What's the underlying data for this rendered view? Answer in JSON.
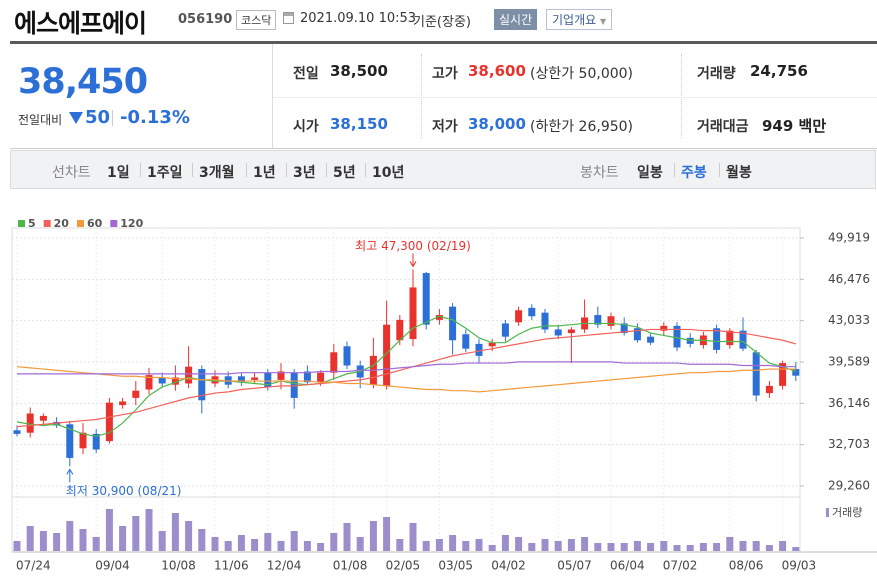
{
  "header": {
    "title": "에스에프에이",
    "code": "056190",
    "market": "코스닥",
    "datetime": "2021.09.10 10:53",
    "basis": "기준(장중)",
    "realtime": "실시간",
    "company": "기업개요"
  },
  "quote": {
    "price": "38,450",
    "change_label": "전일대비",
    "change": "50",
    "change_rate": "-0.13%",
    "items": [
      {
        "label": "전일",
        "value": "38,500"
      },
      {
        "label": "고가",
        "value": "38,600",
        "note": "(상한가 50,000)"
      },
      {
        "label": "거래량",
        "value": "24,756"
      },
      {
        "label": "시가",
        "value": "38,150"
      },
      {
        "label": "저가",
        "value": "38,000",
        "note": "(하한가 26,950)"
      },
      {
        "label": "거래대금",
        "value": "949 백만"
      }
    ]
  },
  "tabs": {
    "line_label": "선차트",
    "line": [
      "1일",
      "1주일",
      "3개월",
      "1년",
      "3년",
      "5년",
      "10년"
    ],
    "candle_label": "봉차트",
    "candle": [
      "일봉",
      "주봉",
      "월봉"
    ],
    "active": "주봉"
  },
  "chart_data": {
    "type": "candlestick",
    "categories": [
      "07/24",
      null,
      null,
      null,
      null,
      null,
      "09/04",
      null,
      null,
      null,
      null,
      "10/08",
      null,
      null,
      null,
      "11/06",
      null,
      null,
      null,
      "12/04",
      null,
      null,
      null,
      null,
      "01/08",
      null,
      null,
      null,
      "02/05",
      null,
      null,
      null,
      "03/05",
      null,
      null,
      null,
      "04/02",
      null,
      null,
      null,
      null,
      "05/07",
      null,
      null,
      null,
      "06/04",
      null,
      null,
      null,
      "07/02",
      null,
      null,
      null,
      null,
      "08/06",
      null,
      null,
      null,
      "09/03",
      null
    ],
    "open": [
      33900,
      33700,
      34700,
      34600,
      34400,
      32400,
      33600,
      33000,
      36000,
      36600,
      37300,
      38300,
      37700,
      37800,
      39000,
      37800,
      38400,
      38400,
      38100,
      38700,
      38100,
      38700,
      38800,
      37900,
      38700,
      40900,
      39300,
      37700,
      37600,
      41400,
      41500,
      47000,
      43100,
      44200,
      41900,
      41100,
      40900,
      42800,
      42900,
      44100,
      43700,
      42300,
      42000,
      42300,
      43500,
      42600,
      42800,
      42400,
      41700,
      42200,
      42600,
      41600,
      41000,
      42400,
      41000,
      42200,
      40400,
      37000,
      37600,
      39000
    ],
    "high": [
      34300,
      35800,
      35300,
      35000,
      34700,
      34500,
      34000,
      36600,
      36600,
      38000,
      39100,
      38700,
      39300,
      40900,
      39300,
      38900,
      38800,
      38700,
      38700,
      39000,
      39500,
      39000,
      39300,
      38900,
      41100,
      41300,
      39700,
      41600,
      44700,
      43500,
      47300,
      47100,
      44000,
      44500,
      42300,
      41500,
      41500,
      43100,
      44200,
      44400,
      44000,
      42700,
      42500,
      44800,
      44200,
      43700,
      43300,
      42800,
      42000,
      42900,
      42900,
      42000,
      42100,
      42700,
      42400,
      43300,
      40600,
      38000,
      39700,
      39600
    ],
    "low": [
      33400,
      33300,
      34400,
      34100,
      30900,
      31900,
      32000,
      32800,
      35700,
      36000,
      36900,
      37500,
      37200,
      37400,
      35300,
      37500,
      37400,
      37600,
      37800,
      37200,
      37300,
      35700,
      37700,
      37600,
      38100,
      39000,
      37400,
      37400,
      37300,
      41000,
      40900,
      42300,
      42700,
      40200,
      40400,
      39500,
      40500,
      41300,
      42600,
      43100,
      42000,
      41500,
      39500,
      42000,
      42400,
      42300,
      41800,
      41200,
      41000,
      41800,
      40500,
      40800,
      40700,
      40300,
      40700,
      40500,
      36300,
      36600,
      37300,
      38000
    ],
    "close": [
      33600,
      35300,
      35100,
      34300,
      31600,
      33700,
      32300,
      36200,
      36300,
      37200,
      38500,
      37800,
      38300,
      39200,
      36400,
      38400,
      37700,
      37900,
      38300,
      37500,
      38800,
      36600,
      37900,
      38700,
      40400,
      39300,
      38300,
      40100,
      42700,
      43100,
      45800,
      42700,
      43500,
      41400,
      40700,
      40100,
      41200,
      41700,
      43900,
      43400,
      42300,
      41800,
      42300,
      43300,
      42700,
      43400,
      42000,
      41400,
      41200,
      42600,
      40800,
      41100,
      41800,
      40600,
      42200,
      40700,
      36800,
      37600,
      39500,
      38450
    ],
    "up_color": "#e8322d",
    "down_color": "#2c6fd6",
    "series": [
      {
        "name": "5",
        "color": "#4db849",
        "values": [
          34600,
          34400,
          34300,
          34400,
          34000,
          33600,
          33400,
          33700,
          34500,
          35600,
          36800,
          37500,
          37900,
          38300,
          38100,
          38000,
          38000,
          37900,
          37800,
          37700,
          38000,
          37800,
          37700,
          37800,
          38200,
          38600,
          38800,
          39300,
          40300,
          41400,
          42400,
          42900,
          43400,
          43100,
          42400,
          41600,
          41200,
          41200,
          41900,
          42400,
          42600,
          42600,
          42700,
          42800,
          42800,
          42800,
          42700,
          42500,
          42000,
          41800,
          41600,
          41400,
          41400,
          41300,
          41300,
          41300,
          40400,
          39500,
          39200,
          38800
        ]
      },
      {
        "name": "20",
        "color": "#f0625a",
        "values": [
          34200,
          34300,
          34400,
          34500,
          34600,
          34700,
          34800,
          35000,
          35200,
          35400,
          35700,
          36000,
          36300,
          36600,
          36800,
          37000,
          37100,
          37300,
          37400,
          37500,
          37600,
          37600,
          37700,
          37800,
          37900,
          38000,
          38100,
          38300,
          38600,
          38900,
          39200,
          39500,
          39800,
          40100,
          40300,
          40500,
          40700,
          40900,
          41100,
          41300,
          41500,
          41600,
          41700,
          41800,
          41900,
          42000,
          42100,
          42200,
          42300,
          42300,
          42300,
          42300,
          42200,
          42200,
          42100,
          42000,
          41800,
          41600,
          41400,
          41100
        ]
      },
      {
        "name": "60",
        "color": "#f59a3c",
        "values": [
          39200,
          39100,
          39000,
          38900,
          38800,
          38700,
          38600,
          38500,
          38400,
          38400,
          38300,
          38300,
          38200,
          38200,
          38100,
          38100,
          38000,
          38000,
          38000,
          38000,
          38000,
          38000,
          38000,
          37900,
          37900,
          37800,
          37800,
          37700,
          37600,
          37500,
          37400,
          37300,
          37300,
          37200,
          37200,
          37100,
          37200,
          37300,
          37400,
          37500,
          37600,
          37700,
          37800,
          37900,
          38000,
          38100,
          38200,
          38300,
          38400,
          38500,
          38600,
          38700,
          38700,
          38800,
          38800,
          38900,
          38900,
          39000,
          39000,
          39000
        ]
      },
      {
        "name": "120",
        "color": "#a16ad6",
        "values": [
          38600,
          38600,
          38600,
          38600,
          38600,
          38600,
          38600,
          38600,
          38600,
          38600,
          38600,
          38600,
          38600,
          38600,
          38600,
          38600,
          38600,
          38700,
          38700,
          38700,
          38700,
          38700,
          38700,
          38800,
          38800,
          38800,
          38900,
          38900,
          39000,
          39100,
          39200,
          39300,
          39400,
          39400,
          39500,
          39500,
          39500,
          39500,
          39600,
          39600,
          39600,
          39600,
          39600,
          39600,
          39600,
          39600,
          39500,
          39500,
          39500,
          39500,
          39500,
          39400,
          39400,
          39400,
          39400,
          39300,
          39300,
          39300,
          39200,
          39200
        ]
      }
    ],
    "ylim": [
      29260,
      49919
    ],
    "yticks": [
      {
        "value": 49919,
        "label": "49,919"
      },
      {
        "value": 46476,
        "label": "46,476"
      },
      {
        "value": 43033,
        "label": "43,033"
      },
      {
        "value": 39589,
        "label": "39,589"
      },
      {
        "value": 36146,
        "label": "36,146"
      },
      {
        "value": 32703,
        "label": "32,703"
      },
      {
        "value": 29260,
        "label": "29,260"
      }
    ],
    "grid": true,
    "annotations": [
      {
        "text": "최고 47,300 (02/19)",
        "value": 47300,
        "field": "high",
        "color": "#e8322d"
      },
      {
        "text": "최저 30,900 (08/21)",
        "value": 30900,
        "field": "low",
        "color": "#2c6fd6"
      }
    ],
    "volume": {
      "name": "거래량",
      "color": "#9b8ecb",
      "ylim": [
        0,
        1150000
      ],
      "values": [
        250000,
        625000,
        500000,
        450000,
        750000,
        550000,
        350000,
        1050000,
        625000,
        875000,
        1050000,
        500000,
        950000,
        750000,
        550000,
        350000,
        250000,
        400000,
        300000,
        450000,
        250000,
        500000,
        250000,
        200000,
        450000,
        700000,
        350000,
        750000,
        850000,
        300000,
        700000,
        250000,
        300000,
        400000,
        250000,
        300000,
        150000,
        400000,
        350000,
        200000,
        300000,
        250000,
        300000,
        350000,
        200000,
        200000,
        200000,
        250000,
        200000,
        250000,
        150000,
        150000,
        200000,
        200000,
        350000,
        250000,
        250000,
        150000,
        250000,
        100000
      ]
    }
  }
}
